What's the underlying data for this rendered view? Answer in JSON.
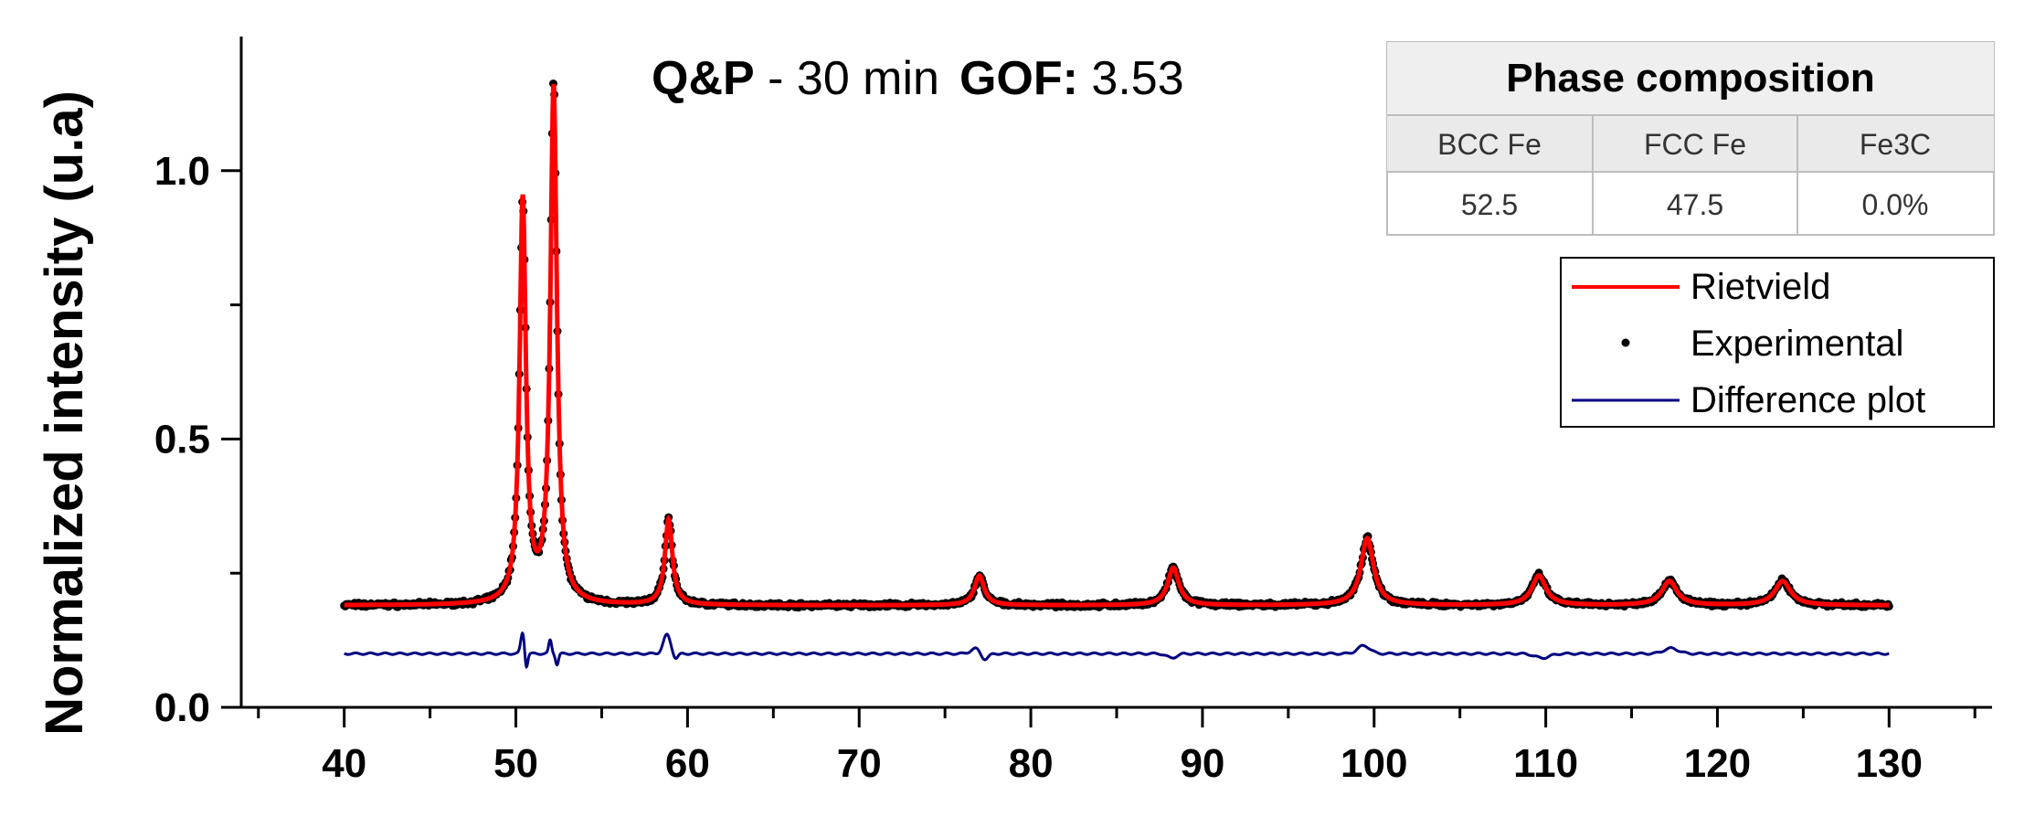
{
  "chart_data": {
    "type": "line",
    "title": {
      "bold_part": "Q&P",
      "rest": " - 30 min",
      "gof_label": "GOF:",
      "gof_value": " 3.53"
    },
    "xlabel": "",
    "ylabel": "Normalized intensity (u.a)",
    "xlim": [
      34,
      136
    ],
    "ylim": [
      0,
      1.25
    ],
    "xticks": [
      40,
      50,
      60,
      70,
      80,
      90,
      100,
      110,
      120,
      130
    ],
    "yticks": [
      0.0,
      0.5,
      1.0
    ],
    "ytick_labels": [
      "0.0",
      "0.5",
      "1.0"
    ],
    "baseline": 0.19,
    "diff_baseline": 0.1,
    "peaks": [
      {
        "x": 50.4,
        "height": 0.94
      },
      {
        "x": 52.2,
        "height": 1.15
      },
      {
        "x": 58.9,
        "height": 0.35
      },
      {
        "x": 77.0,
        "height": 0.245
      },
      {
        "x": 88.3,
        "height": 0.26
      },
      {
        "x": 99.6,
        "height": 0.315
      },
      {
        "x": 109.6,
        "height": 0.245
      },
      {
        "x": 117.2,
        "height": 0.235
      },
      {
        "x": 123.8,
        "height": 0.235
      }
    ],
    "series": [
      {
        "name": "Rietvield",
        "color": "#ff0000",
        "style": "line"
      },
      {
        "name": "Experimental",
        "color": "#000000",
        "style": "dots"
      },
      {
        "name": "Difference plot",
        "color": "#000080",
        "style": "line"
      }
    ],
    "legend_placement": "top-right",
    "table": {
      "title": "Phase composition",
      "headers": [
        "BCC Fe",
        "FCC Fe",
        "Fe3C"
      ],
      "values": [
        "52.5",
        "47.5",
        "0.0%"
      ]
    }
  }
}
